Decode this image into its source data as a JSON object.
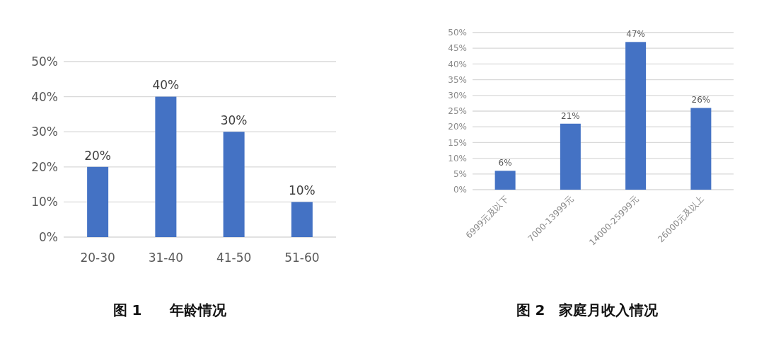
{
  "chart_data": [
    {
      "type": "bar",
      "title": "图 1　　年龄情况",
      "categories": [
        "20-30",
        "31-40",
        "41-50",
        "51-60"
      ],
      "values": [
        20,
        40,
        30,
        10
      ],
      "value_labels": [
        "20%",
        "40%",
        "30%",
        "10%"
      ],
      "color": "#4472c4",
      "ylim": [
        0,
        50
      ],
      "yticks": [
        {
          "value": 0,
          "label": "0%"
        },
        {
          "value": 10,
          "label": "10%"
        },
        {
          "value": 20,
          "label": "20%"
        },
        {
          "value": 30,
          "label": "30%"
        },
        {
          "value": 40,
          "label": "40%"
        },
        {
          "value": 50,
          "label": "50%"
        }
      ],
      "grid": "y"
    },
    {
      "type": "bar",
      "title": "图 2　家庭月收入情况",
      "categories": [
        "6999元及以下",
        "7000-13999元",
        "14000-25999元",
        "26000元及以上"
      ],
      "values": [
        6,
        21,
        47,
        26
      ],
      "value_labels": [
        "6%",
        "21%",
        "47%",
        "26%"
      ],
      "color": "#4472c4",
      "ylim": [
        0,
        50
      ],
      "yticks": [
        {
          "value": 0,
          "label": "0%"
        },
        {
          "value": 5,
          "label": "5%"
        },
        {
          "value": 10,
          "label": "10%"
        },
        {
          "value": 15,
          "label": "15%"
        },
        {
          "value": 20,
          "label": "20%"
        },
        {
          "value": 25,
          "label": "25%"
        },
        {
          "value": 30,
          "label": "30%"
        },
        {
          "value": 35,
          "label": "35%"
        },
        {
          "value": 40,
          "label": "40%"
        },
        {
          "value": 45,
          "label": "45%"
        },
        {
          "value": 50,
          "label": "50%"
        }
      ],
      "grid": "y"
    }
  ]
}
